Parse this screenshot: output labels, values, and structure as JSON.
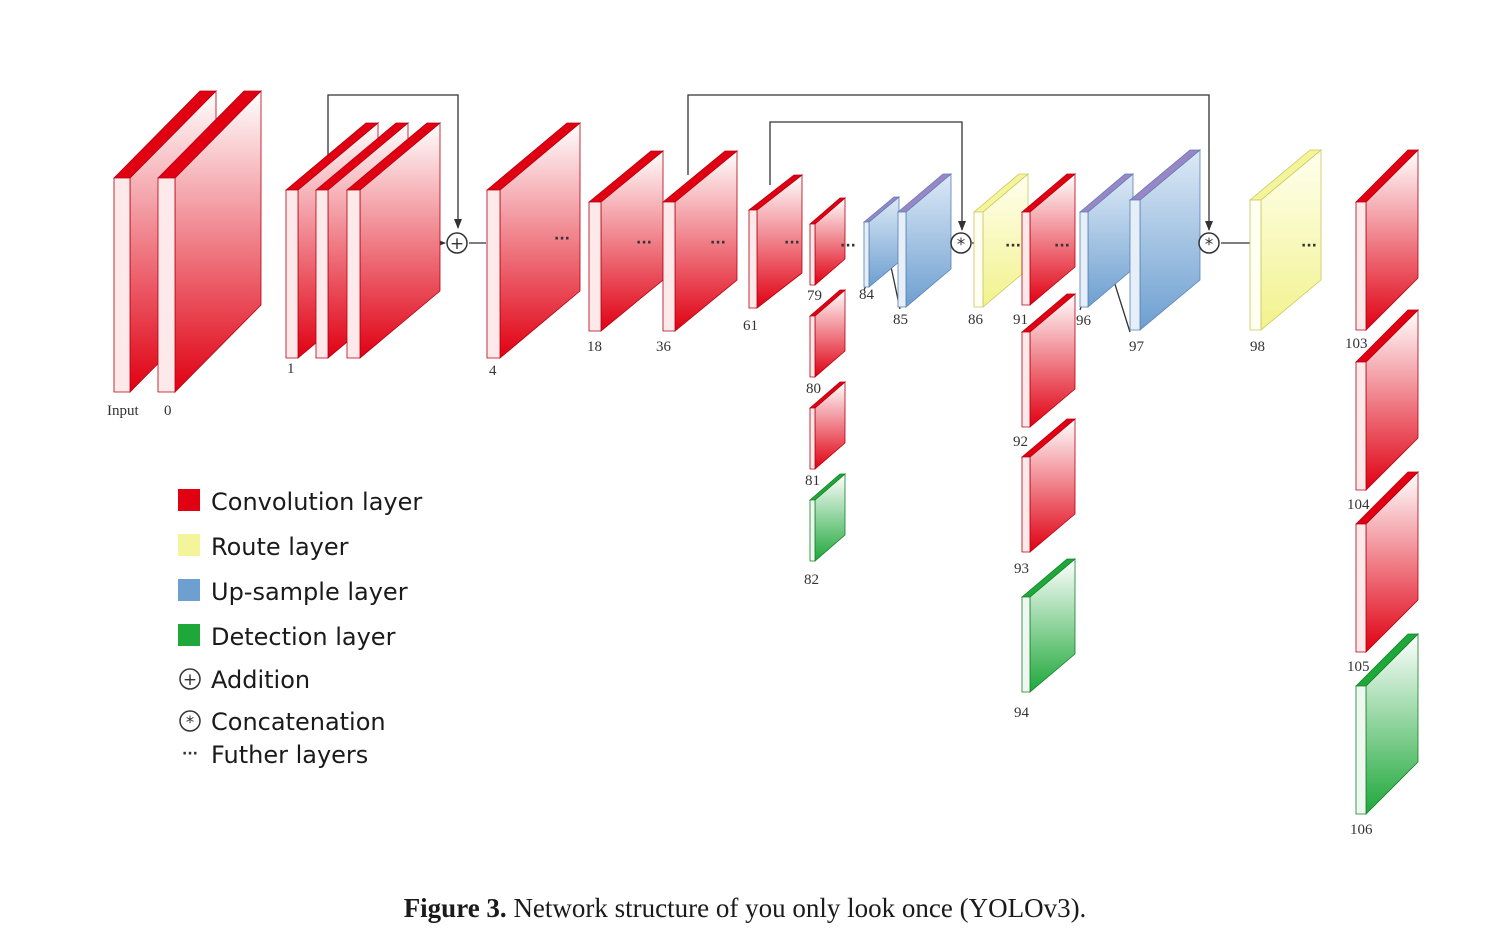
{
  "legend": [
    {
      "kind": "conv",
      "label": "Convolution layer",
      "color": "#e00012"
    },
    {
      "kind": "route",
      "label": "Route layer",
      "color": "#f4f59a"
    },
    {
      "kind": "upsample",
      "label": "Up-sample layer",
      "color": "#6d9fd0"
    },
    {
      "kind": "detect",
      "label": "Detection layer",
      "color": "#1fa83a"
    },
    {
      "kind": "add",
      "label": "Addition",
      "symbol": "⊕"
    },
    {
      "kind": "concat",
      "label": "Concatenation",
      "symbol": "⊛"
    },
    {
      "kind": "dots",
      "label": "Futher layers",
      "symbol": "···"
    }
  ],
  "layer_labels": [
    "Input",
    "0",
    "1",
    "4",
    "18",
    "36",
    "61",
    "79",
    "80",
    "81",
    "82",
    "84",
    "85",
    "86",
    "91",
    "92",
    "93",
    "94",
    "96",
    "97",
    "98",
    "103",
    "104",
    "105",
    "106"
  ],
  "symbols": {
    "add": "+",
    "concat": "*",
    "dots": "···"
  },
  "colors": {
    "conv": "#e00012",
    "route": "#f4f59a",
    "upsample": "#6d9fd0",
    "detect": "#1fa83a"
  },
  "caption": {
    "label": "Figure 3.",
    "text": "Network structure of you only look once (YOLOv3)."
  }
}
